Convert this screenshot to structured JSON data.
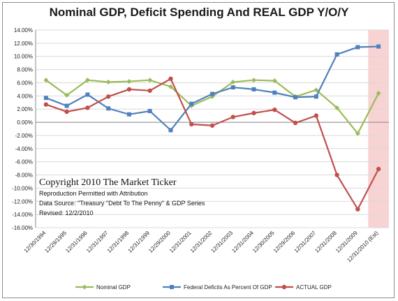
{
  "chart_data": {
    "type": "line",
    "title": "Nominal GDP, Deficit Spending And REAL GDP Y/O/Y",
    "categories": [
      "12/30/1994",
      "12/29/1995",
      "12/31/1996",
      "12/31/1997",
      "12/31/1998",
      "12/31/1999",
      "12/29/2000",
      "12/31/2001",
      "12/31/2002",
      "12/31/2003",
      "12/31/2004",
      "12/30/2005",
      "12/29/2006",
      "12/31/2007",
      "12/31/2008",
      "12/31/2009",
      "12/31/2010 (Est)"
    ],
    "y_ticks": [
      "14.00%",
      "12.00%",
      "10.00%",
      "8.00%",
      "6.00%",
      "4.00%",
      "2.00%",
      "0.00%",
      "-2.00%",
      "-4.00%",
      "-6.00%",
      "-8.00%",
      "-10.00%",
      "-12.00%",
      "-14.00%",
      "-16.00%"
    ],
    "ylim": [
      -16,
      14
    ],
    "grid": true,
    "legend_position": "bottom",
    "highlight_last_category": true,
    "highlight_color": "#f8d3d3",
    "series": [
      {
        "name": "Nominal GDP",
        "color": "#9bbb59",
        "marker": "diamond",
        "values": [
          6.4,
          4.1,
          6.4,
          6.1,
          6.2,
          6.4,
          5.4,
          2.5,
          3.9,
          6.1,
          6.4,
          6.3,
          3.9,
          4.9,
          2.2,
          -1.7,
          4.4
        ]
      },
      {
        "name": "Federal Deficits As Percent Of GDP",
        "color": "#4f81bd",
        "marker": "square",
        "values": [
          3.7,
          2.5,
          4.2,
          2.1,
          1.2,
          1.7,
          -1.2,
          2.8,
          4.3,
          5.3,
          5.0,
          4.5,
          3.8,
          3.9,
          10.3,
          11.4,
          11.5
        ]
      },
      {
        "name": "ACTUAL GDP",
        "color": "#c0504d",
        "marker": "circle",
        "values": [
          2.7,
          1.6,
          2.2,
          3.9,
          5.0,
          4.8,
          6.6,
          -0.3,
          -0.5,
          0.8,
          1.4,
          1.9,
          -0.1,
          1.0,
          -8.0,
          -13.2,
          -7.1
        ]
      }
    ]
  },
  "watermark": {
    "copyright": "Copyright 2010 The Market Ticker",
    "reproduction": "Reproduction Permitted with Attribution",
    "source": "Data Source: \"Treasury \"Debt To The Penny\" & GDP Series",
    "revised": "Revised: 12/2/2010"
  }
}
